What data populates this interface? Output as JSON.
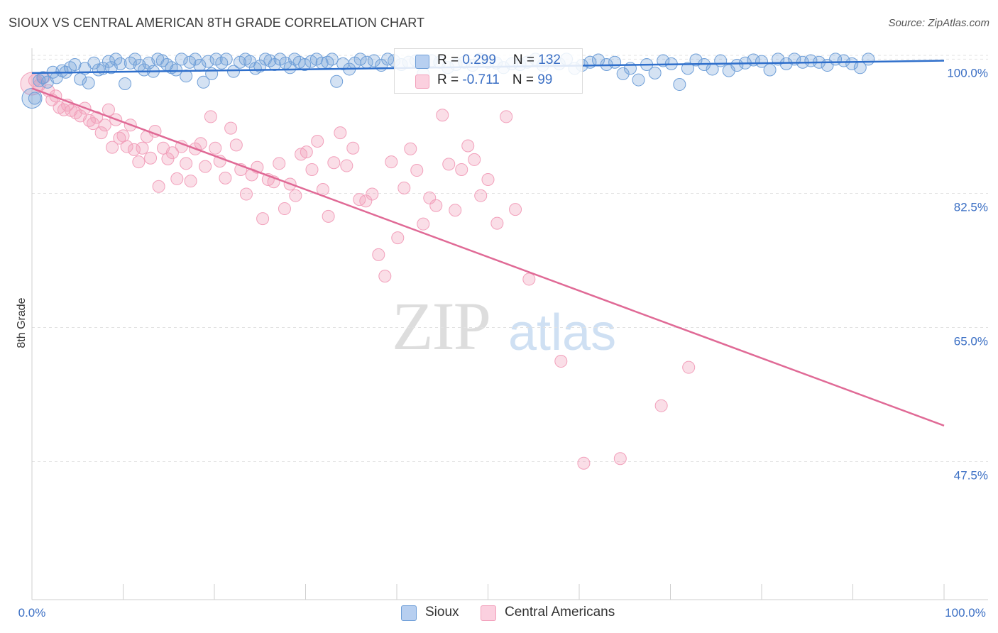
{
  "header": {
    "title": "SIOUX VS CENTRAL AMERICAN 8TH GRADE CORRELATION CHART",
    "source": "Source: ZipAtlas.com"
  },
  "watermark": {
    "zip": "ZIP",
    "atlas": "atlas"
  },
  "legend": {
    "sioux": {
      "r_label": "R = ",
      "r_value": "0.299",
      "n_label": "N = ",
      "n_value": "132"
    },
    "central": {
      "r_label": "R = ",
      "r_value": "-0.711",
      "n_label": "N = ",
      "n_value": "99"
    }
  },
  "bottom_legend": {
    "sioux": "Sioux",
    "central": "Central Americans"
  },
  "chart_data": {
    "type": "scatter",
    "title": "SIOUX VS CENTRAL AMERICAN 8TH GRADE CORRELATION CHART",
    "xlabel": "",
    "ylabel": "8th Grade",
    "xlim": [
      0,
      100
    ],
    "ylim": [
      29.5,
      100.5
    ],
    "x_tick_labels": [
      "0.0%",
      "100.0%"
    ],
    "y_ticks": [
      100.0,
      82.5,
      65.0,
      47.5
    ],
    "y_tick_labels": [
      "100.0%",
      "82.5%",
      "65.0%",
      "47.5%"
    ],
    "grid": true,
    "colors": {
      "sioux": "#6f9fd8",
      "sioux_line": "#2f6fcb",
      "central": "#f2a0bb",
      "central_line": "#e06a96"
    },
    "series": [
      {
        "name": "Sioux",
        "r": 0.299,
        "n": 132,
        "trend": {
          "x": [
            0,
            100
          ],
          "y": [
            98.2,
            99.8
          ]
        },
        "points": [
          [
            0.3,
            94.9
          ],
          [
            0.8,
            97.2
          ],
          [
            1.2,
            97.6
          ],
          [
            1.7,
            97.0
          ],
          [
            2.3,
            98.3
          ],
          [
            2.7,
            97.6
          ],
          [
            3.3,
            98.5
          ],
          [
            3.7,
            98.3
          ],
          [
            4.2,
            98.9
          ],
          [
            4.7,
            99.3
          ],
          [
            5.3,
            97.4
          ],
          [
            5.8,
            98.8
          ],
          [
            6.2,
            96.9
          ],
          [
            6.8,
            99.5
          ],
          [
            7.3,
            98.6
          ],
          [
            7.8,
            98.8
          ],
          [
            8.4,
            99.7
          ],
          [
            8.7,
            98.9
          ],
          [
            9.2,
            100.0
          ],
          [
            9.7,
            99.4
          ],
          [
            10.2,
            96.8
          ],
          [
            10.8,
            99.5
          ],
          [
            11.3,
            100.0
          ],
          [
            11.8,
            99.2
          ],
          [
            12.3,
            98.6
          ],
          [
            12.8,
            99.5
          ],
          [
            13.3,
            98.4
          ],
          [
            13.8,
            100.0
          ],
          [
            14.3,
            99.8
          ],
          [
            14.8,
            99.3
          ],
          [
            15.3,
            98.9
          ],
          [
            15.8,
            98.6
          ],
          [
            16.4,
            100.0
          ],
          [
            16.9,
            97.8
          ],
          [
            17.3,
            99.6
          ],
          [
            17.9,
            100.0
          ],
          [
            18.4,
            99.2
          ],
          [
            18.8,
            97.0
          ],
          [
            19.3,
            99.7
          ],
          [
            19.7,
            98.1
          ],
          [
            20.2,
            100.0
          ],
          [
            20.8,
            99.5
          ],
          [
            21.3,
            100.0
          ],
          [
            22.1,
            98.4
          ],
          [
            22.8,
            99.6
          ],
          [
            23.4,
            100.0
          ],
          [
            23.9,
            99.7
          ],
          [
            24.5,
            98.8
          ],
          [
            25.0,
            99.1
          ],
          [
            25.6,
            100.0
          ],
          [
            26.1,
            99.8
          ],
          [
            26.6,
            99.3
          ],
          [
            27.2,
            100.0
          ],
          [
            27.8,
            99.5
          ],
          [
            28.3,
            98.9
          ],
          [
            28.8,
            100.0
          ],
          [
            29.3,
            99.6
          ],
          [
            29.9,
            99.3
          ],
          [
            30.6,
            99.7
          ],
          [
            31.2,
            100.0
          ],
          [
            31.8,
            99.5
          ],
          [
            32.4,
            99.6
          ],
          [
            32.9,
            100.0
          ],
          [
            33.4,
            97.1
          ],
          [
            34.1,
            99.4
          ],
          [
            34.8,
            98.7
          ],
          [
            35.4,
            99.5
          ],
          [
            36.0,
            100.0
          ],
          [
            36.7,
            99.6
          ],
          [
            37.5,
            99.8
          ],
          [
            38.3,
            99.2
          ],
          [
            39.0,
            100.0
          ],
          [
            39.7,
            99.8
          ],
          [
            40.5,
            99.3
          ],
          [
            41.3,
            99.6
          ],
          [
            42.1,
            99.8
          ],
          [
            42.9,
            98.1
          ],
          [
            43.8,
            99.8
          ],
          [
            44.7,
            99.6
          ],
          [
            45.6,
            98.9
          ],
          [
            46.5,
            99.3
          ],
          [
            47.4,
            99.6
          ],
          [
            48.3,
            99.2
          ],
          [
            49.1,
            100.0
          ],
          [
            50.0,
            99.6
          ],
          [
            50.9,
            99.5
          ],
          [
            51.7,
            98.9
          ],
          [
            52.6,
            99.4
          ],
          [
            53.5,
            99.3
          ],
          [
            54.3,
            99.6
          ],
          [
            55.2,
            100.0
          ],
          [
            56.0,
            99.2
          ],
          [
            56.9,
            99.8
          ],
          [
            57.8,
            99.4
          ],
          [
            58.6,
            100.0
          ],
          [
            59.5,
            98.8
          ],
          [
            60.3,
            99.2
          ],
          [
            61.2,
            99.6
          ],
          [
            62.1,
            99.9
          ],
          [
            63.0,
            99.3
          ],
          [
            63.9,
            99.6
          ],
          [
            64.8,
            98.1
          ],
          [
            65.6,
            98.8
          ],
          [
            66.5,
            97.3
          ],
          [
            67.4,
            99.3
          ],
          [
            68.3,
            98.2
          ],
          [
            69.2,
            99.8
          ],
          [
            70.1,
            99.4
          ],
          [
            71.0,
            96.7
          ],
          [
            71.9,
            98.8
          ],
          [
            72.8,
            99.9
          ],
          [
            73.7,
            99.3
          ],
          [
            74.6,
            98.7
          ],
          [
            75.5,
            99.8
          ],
          [
            76.4,
            98.5
          ],
          [
            77.3,
            99.2
          ],
          [
            78.2,
            99.5
          ],
          [
            79.1,
            99.9
          ],
          [
            80.0,
            99.7
          ],
          [
            80.9,
            98.6
          ],
          [
            81.8,
            100.0
          ],
          [
            82.7,
            99.4
          ],
          [
            83.6,
            100.0
          ],
          [
            84.5,
            99.6
          ],
          [
            85.4,
            99.8
          ],
          [
            86.3,
            99.6
          ],
          [
            87.2,
            99.2
          ],
          [
            88.1,
            100.0
          ],
          [
            89.0,
            99.8
          ],
          [
            89.9,
            99.4
          ],
          [
            90.8,
            98.9
          ],
          [
            91.7,
            100.0
          ]
        ]
      },
      {
        "name": "Central Americans",
        "r": -0.711,
        "n": 99,
        "trend": {
          "x": [
            0,
            100
          ],
          "y": [
            96.2,
            52.2
          ]
        },
        "points": [
          [
            0.3,
            97.2
          ],
          [
            0.8,
            96.6
          ],
          [
            1.3,
            97.6
          ],
          [
            1.8,
            95.9
          ],
          [
            2.2,
            94.7
          ],
          [
            2.6,
            95.2
          ],
          [
            3.0,
            93.7
          ],
          [
            3.5,
            93.4
          ],
          [
            3.9,
            94.0
          ],
          [
            4.3,
            93.3
          ],
          [
            4.8,
            93.0
          ],
          [
            5.3,
            92.6
          ],
          [
            5.8,
            93.6
          ],
          [
            6.3,
            92.0
          ],
          [
            6.7,
            91.6
          ],
          [
            7.1,
            92.4
          ],
          [
            7.6,
            90.4
          ],
          [
            8.0,
            91.4
          ],
          [
            8.4,
            93.4
          ],
          [
            8.8,
            88.5
          ],
          [
            9.2,
            92.1
          ],
          [
            9.6,
            89.7
          ],
          [
            10.0,
            90.0
          ],
          [
            10.4,
            88.6
          ],
          [
            10.8,
            91.4
          ],
          [
            11.2,
            88.2
          ],
          [
            11.7,
            86.6
          ],
          [
            12.1,
            88.4
          ],
          [
            12.6,
            89.9
          ],
          [
            13.0,
            87.1
          ],
          [
            13.5,
            90.6
          ],
          [
            13.9,
            83.4
          ],
          [
            14.4,
            88.4
          ],
          [
            14.9,
            87.0
          ],
          [
            15.4,
            87.8
          ],
          [
            15.9,
            84.4
          ],
          [
            16.4,
            88.6
          ],
          [
            16.9,
            86.4
          ],
          [
            17.4,
            84.1
          ],
          [
            17.9,
            88.3
          ],
          [
            18.5,
            89.0
          ],
          [
            19.0,
            86.0
          ],
          [
            19.6,
            92.5
          ],
          [
            20.1,
            88.4
          ],
          [
            20.6,
            86.7
          ],
          [
            21.2,
            84.5
          ],
          [
            21.8,
            91.0
          ],
          [
            22.4,
            88.8
          ],
          [
            22.9,
            85.6
          ],
          [
            23.5,
            82.4
          ],
          [
            24.1,
            84.9
          ],
          [
            24.7,
            85.9
          ],
          [
            25.3,
            79.2
          ],
          [
            25.9,
            84.3
          ],
          [
            26.5,
            84.0
          ],
          [
            27.1,
            86.4
          ],
          [
            27.7,
            80.5
          ],
          [
            28.3,
            83.7
          ],
          [
            28.9,
            82.2
          ],
          [
            29.5,
            87.6
          ],
          [
            30.1,
            87.9
          ],
          [
            30.7,
            85.6
          ],
          [
            31.3,
            89.3
          ],
          [
            31.9,
            83.0
          ],
          [
            32.5,
            79.5
          ],
          [
            33.1,
            86.5
          ],
          [
            33.8,
            90.4
          ],
          [
            34.5,
            86.1
          ],
          [
            35.2,
            88.4
          ],
          [
            35.9,
            81.7
          ],
          [
            36.6,
            81.5
          ],
          [
            37.3,
            82.4
          ],
          [
            38.0,
            74.5
          ],
          [
            38.7,
            71.7
          ],
          [
            39.4,
            86.6
          ],
          [
            40.1,
            76.7
          ],
          [
            40.8,
            83.2
          ],
          [
            41.5,
            88.3
          ],
          [
            42.2,
            85.5
          ],
          [
            42.9,
            78.5
          ],
          [
            43.6,
            81.9
          ],
          [
            44.3,
            80.9
          ],
          [
            45.0,
            92.7
          ],
          [
            45.7,
            86.3
          ],
          [
            46.4,
            80.3
          ],
          [
            47.1,
            85.6
          ],
          [
            47.8,
            88.7
          ],
          [
            48.5,
            86.9
          ],
          [
            49.2,
            82.2
          ],
          [
            50.0,
            84.3
          ],
          [
            51.0,
            78.6
          ],
          [
            52.0,
            92.5
          ],
          [
            53.0,
            80.4
          ],
          [
            54.5,
            71.3
          ],
          [
            58.0,
            60.6
          ],
          [
            60.5,
            47.3
          ],
          [
            64.5,
            47.9
          ],
          [
            69.0,
            54.8
          ],
          [
            72.0,
            59.8
          ]
        ]
      }
    ]
  }
}
